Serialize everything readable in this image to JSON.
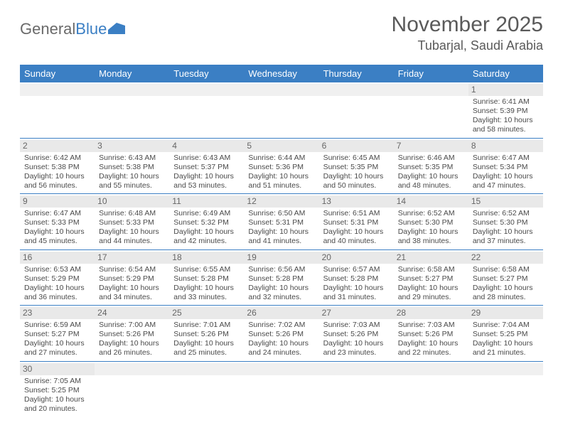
{
  "brand": {
    "part1": "General",
    "part2": "Blue"
  },
  "title": "November 2025",
  "location": "Tubarjal, Saudi Arabia",
  "colors": {
    "header_bg": "#3b7fc4",
    "header_text": "#ffffff",
    "cell_num_bg": "#e9e9e9",
    "text": "#4a4a4a",
    "divider": "#3b7fc4"
  },
  "day_names": [
    "Sunday",
    "Monday",
    "Tuesday",
    "Wednesday",
    "Thursday",
    "Friday",
    "Saturday"
  ],
  "weeks": [
    [
      {
        "blank": true
      },
      {
        "blank": true
      },
      {
        "blank": true
      },
      {
        "blank": true
      },
      {
        "blank": true
      },
      {
        "blank": true
      },
      {
        "n": "1",
        "sr": "6:41 AM",
        "ss": "5:39 PM",
        "dl": "10 hours and 58 minutes."
      }
    ],
    [
      {
        "n": "2",
        "sr": "6:42 AM",
        "ss": "5:38 PM",
        "dl": "10 hours and 56 minutes."
      },
      {
        "n": "3",
        "sr": "6:43 AM",
        "ss": "5:38 PM",
        "dl": "10 hours and 55 minutes."
      },
      {
        "n": "4",
        "sr": "6:43 AM",
        "ss": "5:37 PM",
        "dl": "10 hours and 53 minutes."
      },
      {
        "n": "5",
        "sr": "6:44 AM",
        "ss": "5:36 PM",
        "dl": "10 hours and 51 minutes."
      },
      {
        "n": "6",
        "sr": "6:45 AM",
        "ss": "5:35 PM",
        "dl": "10 hours and 50 minutes."
      },
      {
        "n": "7",
        "sr": "6:46 AM",
        "ss": "5:35 PM",
        "dl": "10 hours and 48 minutes."
      },
      {
        "n": "8",
        "sr": "6:47 AM",
        "ss": "5:34 PM",
        "dl": "10 hours and 47 minutes."
      }
    ],
    [
      {
        "n": "9",
        "sr": "6:47 AM",
        "ss": "5:33 PM",
        "dl": "10 hours and 45 minutes."
      },
      {
        "n": "10",
        "sr": "6:48 AM",
        "ss": "5:33 PM",
        "dl": "10 hours and 44 minutes."
      },
      {
        "n": "11",
        "sr": "6:49 AM",
        "ss": "5:32 PM",
        "dl": "10 hours and 42 minutes."
      },
      {
        "n": "12",
        "sr": "6:50 AM",
        "ss": "5:31 PM",
        "dl": "10 hours and 41 minutes."
      },
      {
        "n": "13",
        "sr": "6:51 AM",
        "ss": "5:31 PM",
        "dl": "10 hours and 40 minutes."
      },
      {
        "n": "14",
        "sr": "6:52 AM",
        "ss": "5:30 PM",
        "dl": "10 hours and 38 minutes."
      },
      {
        "n": "15",
        "sr": "6:52 AM",
        "ss": "5:30 PM",
        "dl": "10 hours and 37 minutes."
      }
    ],
    [
      {
        "n": "16",
        "sr": "6:53 AM",
        "ss": "5:29 PM",
        "dl": "10 hours and 36 minutes."
      },
      {
        "n": "17",
        "sr": "6:54 AM",
        "ss": "5:29 PM",
        "dl": "10 hours and 34 minutes."
      },
      {
        "n": "18",
        "sr": "6:55 AM",
        "ss": "5:28 PM",
        "dl": "10 hours and 33 minutes."
      },
      {
        "n": "19",
        "sr": "6:56 AM",
        "ss": "5:28 PM",
        "dl": "10 hours and 32 minutes."
      },
      {
        "n": "20",
        "sr": "6:57 AM",
        "ss": "5:28 PM",
        "dl": "10 hours and 31 minutes."
      },
      {
        "n": "21",
        "sr": "6:58 AM",
        "ss": "5:27 PM",
        "dl": "10 hours and 29 minutes."
      },
      {
        "n": "22",
        "sr": "6:58 AM",
        "ss": "5:27 PM",
        "dl": "10 hours and 28 minutes."
      }
    ],
    [
      {
        "n": "23",
        "sr": "6:59 AM",
        "ss": "5:27 PM",
        "dl": "10 hours and 27 minutes."
      },
      {
        "n": "24",
        "sr": "7:00 AM",
        "ss": "5:26 PM",
        "dl": "10 hours and 26 minutes."
      },
      {
        "n": "25",
        "sr": "7:01 AM",
        "ss": "5:26 PM",
        "dl": "10 hours and 25 minutes."
      },
      {
        "n": "26",
        "sr": "7:02 AM",
        "ss": "5:26 PM",
        "dl": "10 hours and 24 minutes."
      },
      {
        "n": "27",
        "sr": "7:03 AM",
        "ss": "5:26 PM",
        "dl": "10 hours and 23 minutes."
      },
      {
        "n": "28",
        "sr": "7:03 AM",
        "ss": "5:26 PM",
        "dl": "10 hours and 22 minutes."
      },
      {
        "n": "29",
        "sr": "7:04 AM",
        "ss": "5:25 PM",
        "dl": "10 hours and 21 minutes."
      }
    ],
    [
      {
        "n": "30",
        "sr": "7:05 AM",
        "ss": "5:25 PM",
        "dl": "10 hours and 20 minutes."
      },
      {
        "blank": true
      },
      {
        "blank": true
      },
      {
        "blank": true
      },
      {
        "blank": true
      },
      {
        "blank": true
      },
      {
        "blank": true
      }
    ]
  ],
  "labels": {
    "sunrise": "Sunrise:",
    "sunset": "Sunset:",
    "daylight": "Daylight:"
  }
}
